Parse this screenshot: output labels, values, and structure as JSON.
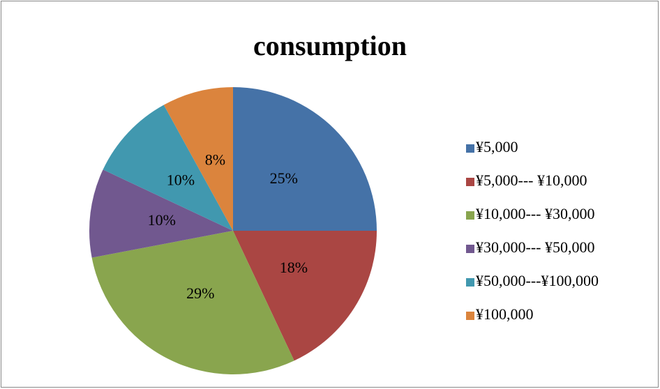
{
  "chart_data": {
    "type": "pie",
    "title": "consumption",
    "categories": [
      "¥5,000",
      "¥5,000--- ¥10,000",
      "¥10,000--- ¥30,000",
      "¥30,000--- ¥50,000",
      "¥50,000---¥100,000",
      "¥100,000"
    ],
    "values": [
      25,
      18,
      29,
      10,
      10,
      8
    ],
    "value_labels": [
      "25%",
      "18%",
      "29%",
      "10%",
      "10%",
      "8%"
    ],
    "colors": [
      "#4572a7",
      "#aa4643",
      "#89a54e",
      "#71588f",
      "#4198af",
      "#db843d"
    ],
    "legend": "right"
  }
}
